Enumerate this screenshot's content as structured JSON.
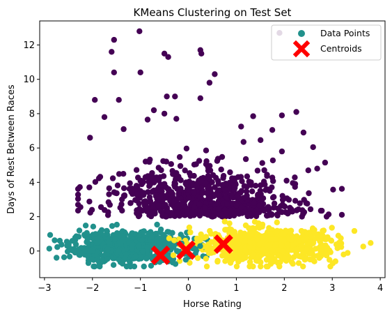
{
  "chart_data": {
    "type": "scatter",
    "title": "KMeans Clustering on Test Set",
    "xlabel": "Horse Rating",
    "ylabel": "Days of Rest Between Races",
    "xlim": [
      -3.1,
      4.1
    ],
    "ylim": [
      -1.55,
      13.4
    ],
    "xticks": [
      -3,
      -2,
      -1,
      0,
      1,
      2,
      3,
      4
    ],
    "yticks": [
      0,
      2,
      4,
      6,
      8,
      10,
      12
    ],
    "grid": false,
    "legend_position": "top-right",
    "legend": [
      {
        "label": "Data Points",
        "marker": "circle",
        "color": "#21918c"
      },
      {
        "label": "Centroids",
        "marker": "x",
        "color": "#ff0000"
      }
    ],
    "clusters": [
      {
        "color": "#440154",
        "x_range": [
          -2.3,
          3.2
        ],
        "y_range": [
          1.6,
          12.8
        ],
        "approx_center": [
          0.5,
          2.8
        ]
      },
      {
        "color": "#21918c",
        "x_range": [
          -2.9,
          0.4
        ],
        "y_range": [
          -0.9,
          1.9
        ],
        "approx_center": [
          -1.3,
          0.1
        ]
      },
      {
        "color": "#fde725",
        "x_range": [
          -0.4,
          3.8
        ],
        "y_range": [
          -0.9,
          2.3
        ],
        "approx_center": [
          1.8,
          0.2
        ]
      }
    ],
    "outliers": [
      {
        "cluster": 0,
        "x": -1.02,
        "y": 12.8
      },
      {
        "cluster": 0,
        "x": -1.55,
        "y": 12.3
      },
      {
        "cluster": 0,
        "x": 0.25,
        "y": 11.7
      },
      {
        "cluster": 0,
        "x": 0.27,
        "y": 11.5
      },
      {
        "cluster": 0,
        "x": -1.6,
        "y": 11.6
      },
      {
        "cluster": 0,
        "x": -0.5,
        "y": 11.5
      },
      {
        "cluster": 0,
        "x": -0.42,
        "y": 11.3
      },
      {
        "cluster": 0,
        "x": -1.55,
        "y": 10.4
      },
      {
        "cluster": 0,
        "x": -1.0,
        "y": 10.4
      },
      {
        "cluster": 0,
        "x": 0.55,
        "y": 10.3
      },
      {
        "cluster": 0,
        "x": 0.44,
        "y": 9.8
      },
      {
        "cluster": 0,
        "x": -0.45,
        "y": 9.0
      },
      {
        "cluster": 0,
        "x": -0.28,
        "y": 9.0
      },
      {
        "cluster": 0,
        "x": 0.25,
        "y": 8.9
      },
      {
        "cluster": 0,
        "x": -1.45,
        "y": 8.8
      },
      {
        "cluster": 0,
        "x": -1.95,
        "y": 8.8
      },
      {
        "cluster": 0,
        "x": 2.25,
        "y": 8.1
      },
      {
        "cluster": 0,
        "x": 1.95,
        "y": 7.9
      },
      {
        "cluster": 0,
        "x": -0.5,
        "y": 8.0
      },
      {
        "cluster": 0,
        "x": -0.72,
        "y": 8.2
      },
      {
        "cluster": 0,
        "x": -1.75,
        "y": 7.8
      },
      {
        "cluster": 0,
        "x": -0.25,
        "y": 7.7
      },
      {
        "cluster": 0,
        "x": -0.85,
        "y": 7.65
      },
      {
        "cluster": 0,
        "x": 1.35,
        "y": 7.85
      },
      {
        "cluster": 0,
        "x": 1.75,
        "y": 7.05
      },
      {
        "cluster": 0,
        "x": 2.4,
        "y": 6.9
      },
      {
        "cluster": 0,
        "x": 1.1,
        "y": 7.25
      },
      {
        "cluster": 0,
        "x": 1.9,
        "y": 12.7
      },
      {
        "cluster": 0,
        "x": 2.6,
        "y": 6.05
      },
      {
        "cluster": 0,
        "x": 2.85,
        "y": 5.15
      },
      {
        "cluster": 0,
        "x": -2.05,
        "y": 6.6
      },
      {
        "cluster": 0,
        "x": -1.35,
        "y": 7.1
      },
      {
        "cluster": 0,
        "x": 1.95,
        "y": 5.8
      },
      {
        "cluster": 0,
        "x": 2.5,
        "y": 4.7
      },
      {
        "cluster": 0,
        "x": 1.15,
        "y": 6.35
      }
    ],
    "centroids": [
      {
        "x": -0.58,
        "y": -0.25
      },
      {
        "x": -0.05,
        "y": 0.05
      },
      {
        "x": 0.73,
        "y": 0.4
      }
    ]
  }
}
